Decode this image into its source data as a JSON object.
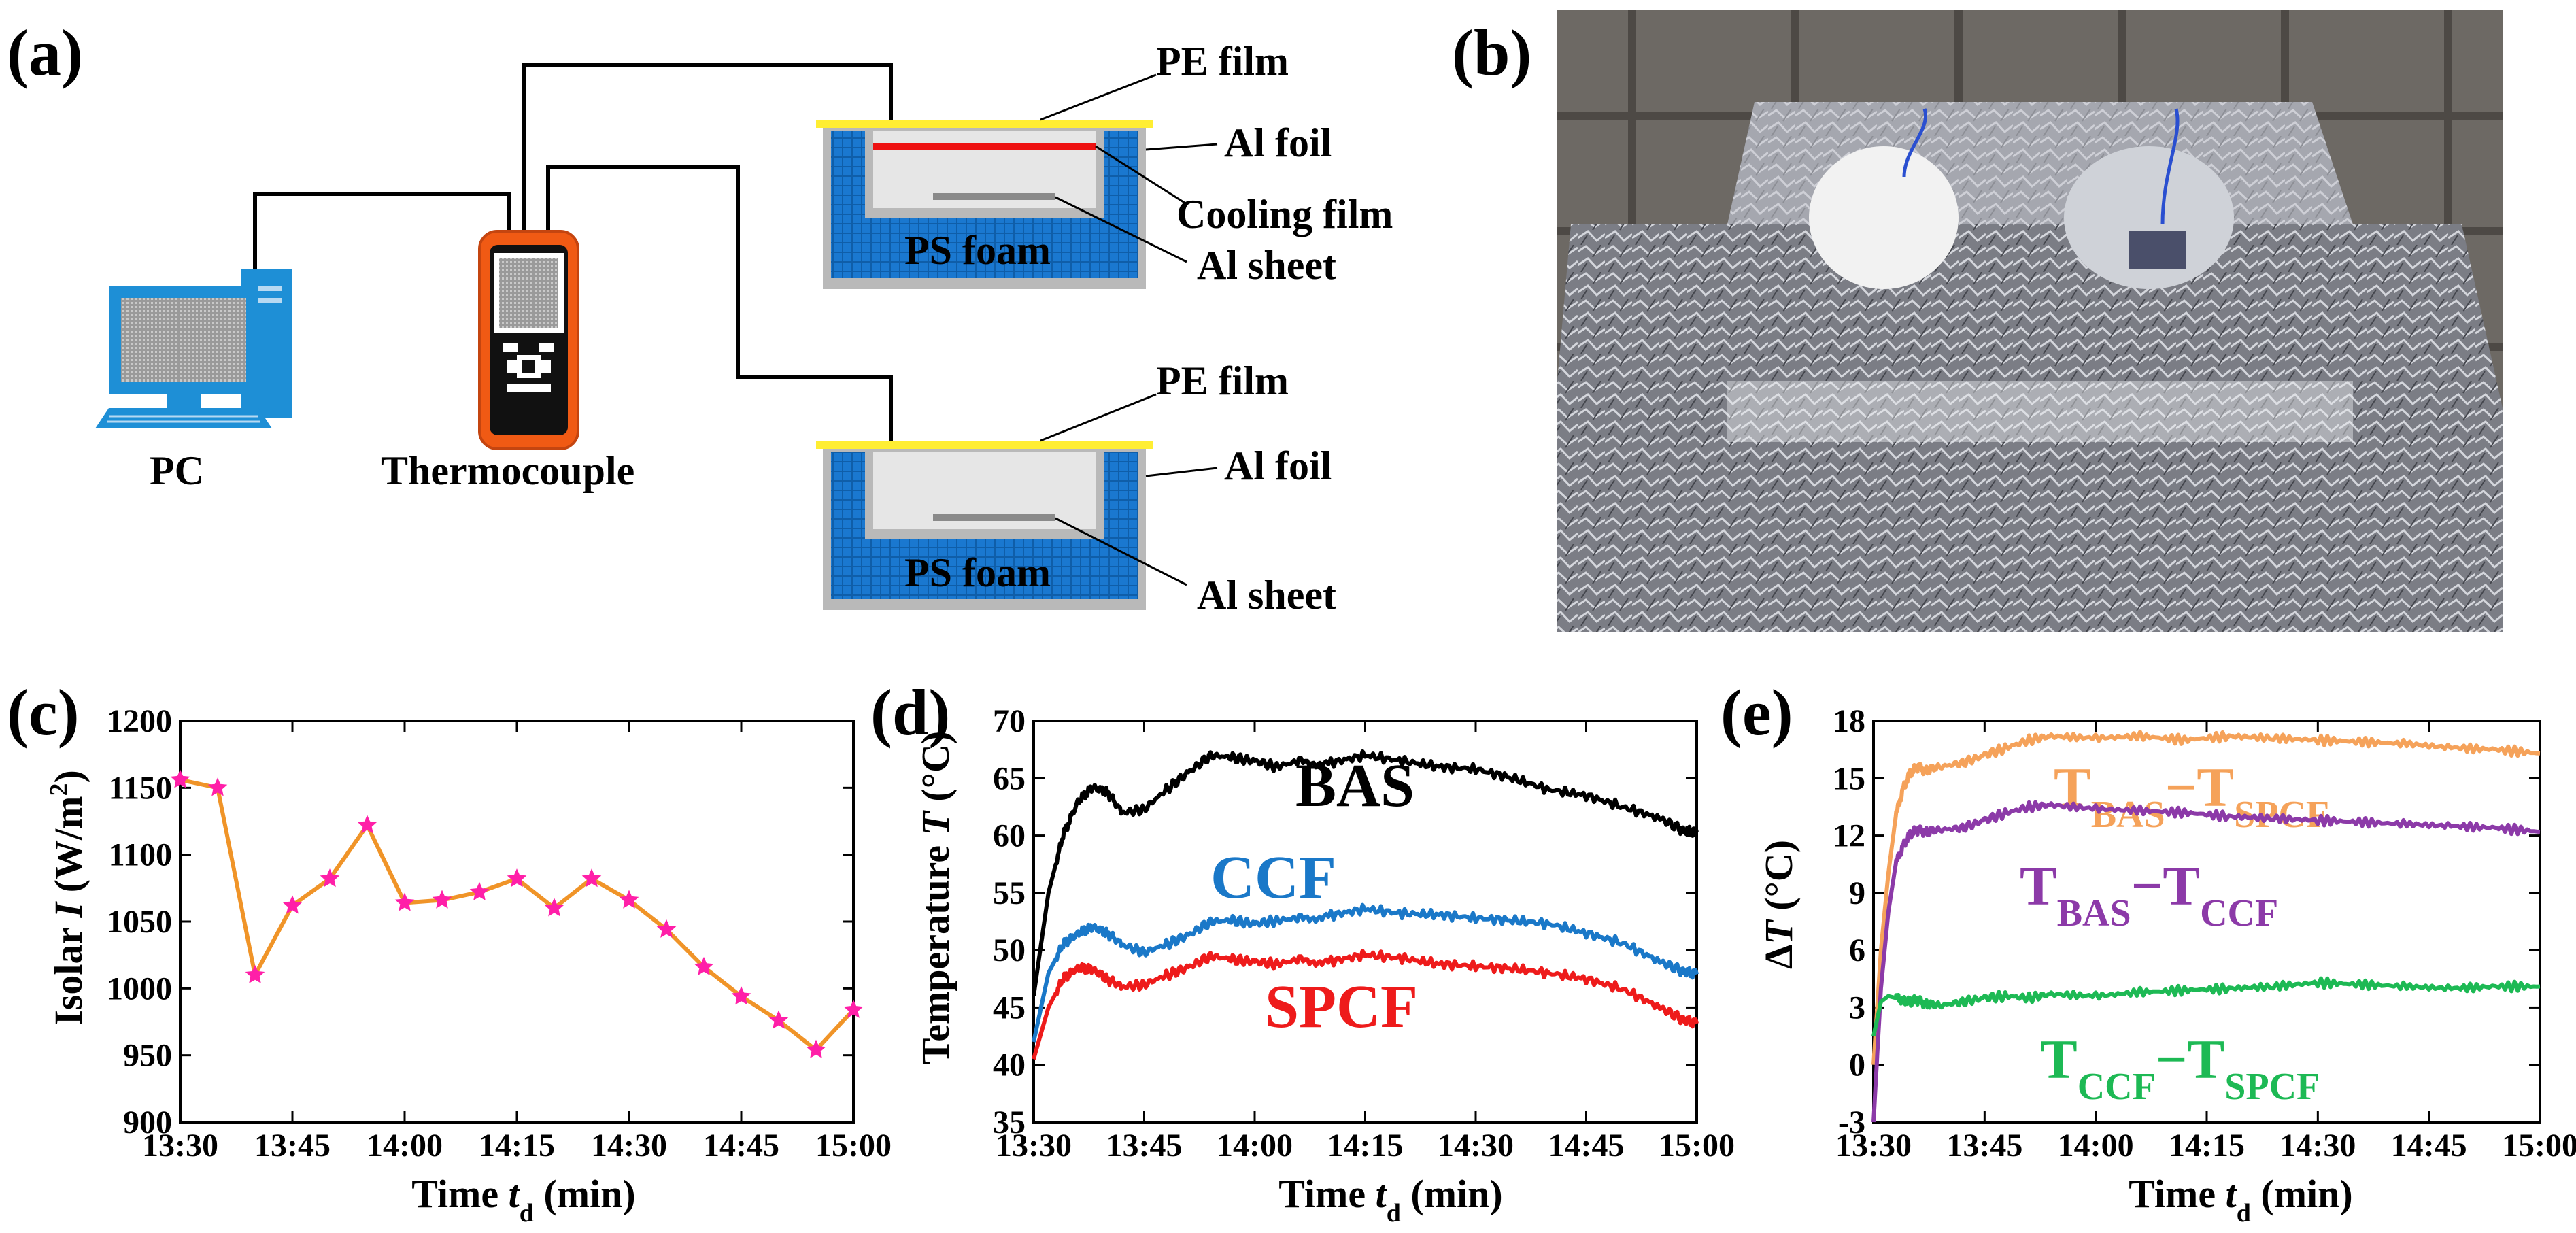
{
  "colors": {
    "pe_film": "#ffee33",
    "cooling_film": "#ee1111",
    "ps_foam": "#1a78d0",
    "al_foil": "#b9b9b9",
    "device_orange": "#f05a14",
    "pc_blue": "#1e8fd6",
    "series_black": "#000000",
    "series_blue": "#1a78c8",
    "series_red": "#ee1b1b",
    "series_orange": "#f5a25a",
    "series_purple": "#8c3aa8",
    "series_green": "#1db954",
    "line_c": "#f09428",
    "marker_c": "#ff1fa8"
  },
  "panels": {
    "a": {
      "label": "(a)",
      "pc_label": "PC",
      "thermocouple_label": "Thermocouple",
      "top_setup": {
        "pe_film": "PE film",
        "al_foil": "Al foil",
        "cooling_film": "Cooling film",
        "ps_foam": "PS foam",
        "al_sheet": "Al sheet"
      },
      "bottom_setup": {
        "pe_film": "PE film",
        "al_foil": "Al foil",
        "ps_foam": "PS foam",
        "al_sheet": "Al sheet"
      }
    },
    "b": {
      "label": "(b)"
    },
    "c": {
      "label": "(c)"
    },
    "d": {
      "label": "(d)"
    },
    "e": {
      "label": "(e)"
    }
  },
  "chart_data": [
    {
      "panel": "c",
      "type": "line",
      "title": "",
      "xlabel_main": "Time ",
      "xlabel_var": "t",
      "xlabel_sub": "d",
      "xlabel_unit": " (min)",
      "ylabel_main": "Isolar ",
      "ylabel_var": "I",
      "ylabel_unit": " (W/m",
      "ylabel_sup": "2",
      "ylabel_close": ")",
      "x_ticks": [
        "13:30",
        "13:45",
        "14:00",
        "14:15",
        "14:30",
        "14:45",
        "15:00"
      ],
      "y_ticks": [
        "900",
        "950",
        "1000",
        "1050",
        "1100",
        "1150",
        "1200"
      ],
      "xlim": [
        0,
        90
      ],
      "ylim": [
        900,
        1200
      ],
      "x": [
        0,
        5,
        10,
        15,
        20,
        25,
        30,
        35,
        40,
        45,
        50,
        55,
        60,
        65,
        70,
        75,
        80,
        85,
        90
      ],
      "values": [
        1156,
        1150,
        1010,
        1062,
        1082,
        1122,
        1064,
        1066,
        1072,
        1082,
        1060,
        1082,
        1066,
        1044,
        1016,
        994,
        976,
        954,
        984
      ]
    },
    {
      "panel": "d",
      "type": "line",
      "xlabel_main": "Time ",
      "xlabel_var": "t",
      "xlabel_sub": "d",
      "xlabel_unit": " (min)",
      "ylabel_main": "Temperature ",
      "ylabel_var": "T",
      "ylabel_unit": " (°C)",
      "x_ticks": [
        "13:30",
        "13:45",
        "14:00",
        "14:15",
        "14:30",
        "14:45",
        "15:00"
      ],
      "y_ticks": [
        "35",
        "40",
        "45",
        "50",
        "55",
        "60",
        "65",
        "70"
      ],
      "xlim": [
        0,
        90
      ],
      "ylim": [
        35,
        70
      ],
      "series": [
        {
          "name": "BAS",
          "color_key": "series_black",
          "x": [
            0,
            2,
            4,
            6,
            8,
            10,
            12,
            15,
            18,
            21,
            24,
            27,
            30,
            33,
            36,
            40,
            45,
            50,
            55,
            60,
            65,
            70,
            75,
            80,
            85,
            88,
            90
          ],
          "values": [
            46,
            55,
            60,
            63,
            64.2,
            63.8,
            62,
            62.3,
            64,
            65.5,
            67,
            66.8,
            66.5,
            66,
            66.5,
            66.3,
            67,
            66.5,
            66,
            65.8,
            65,
            64,
            63.5,
            62.5,
            61.5,
            60.5,
            60.3
          ]
        },
        {
          "name": "CCF",
          "color_key": "series_blue",
          "x": [
            0,
            2,
            4,
            6,
            8,
            10,
            12,
            15,
            18,
            21,
            24,
            27,
            30,
            33,
            36,
            40,
            45,
            50,
            55,
            60,
            65,
            70,
            75,
            80,
            85,
            88,
            90
          ],
          "values": [
            42,
            48,
            50.5,
            51.5,
            52,
            51.5,
            50.5,
            49.8,
            50.5,
            51.3,
            52.5,
            52.6,
            52.3,
            52.6,
            52.8,
            53,
            53.6,
            53.2,
            53.1,
            52.8,
            52.6,
            52.3,
            51.5,
            50.6,
            49,
            48.2,
            47.9
          ]
        },
        {
          "name": "SPCF",
          "color_key": "series_red",
          "x": [
            0,
            2,
            4,
            6,
            8,
            10,
            12,
            15,
            18,
            21,
            24,
            27,
            30,
            33,
            36,
            40,
            45,
            50,
            55,
            60,
            65,
            70,
            75,
            80,
            85,
            88,
            90
          ],
          "values": [
            40.5,
            45,
            47.5,
            48.5,
            48.3,
            47.5,
            46.8,
            47,
            47.8,
            48.5,
            49.5,
            49.2,
            49,
            48.8,
            49.2,
            49,
            49.6,
            49.3,
            48.8,
            48.6,
            48.4,
            48,
            47.5,
            46.6,
            45,
            44,
            43.6
          ]
        }
      ]
    },
    {
      "panel": "e",
      "type": "line",
      "xlabel_main": "Time ",
      "xlabel_var": "t",
      "xlabel_sub": "d",
      "xlabel_unit": " (min)",
      "ylabel_delta": "Δ",
      "ylabel_var": "T",
      "ylabel_unit": " (°C)",
      "x_ticks": [
        "13:30",
        "13:45",
        "14:00",
        "14:15",
        "14:30",
        "14:45",
        "15:00"
      ],
      "y_ticks": [
        "-3",
        "0",
        "3",
        "6",
        "9",
        "12",
        "15",
        "18"
      ],
      "xlim": [
        0,
        90
      ],
      "ylim": [
        -3,
        18
      ],
      "series": [
        {
          "name_base": "T",
          "sub1": "BAS",
          "minus": "−",
          "name_base2": "T",
          "sub2": "SPCF",
          "color_key": "series_orange",
          "x": [
            0,
            1,
            2,
            3,
            4,
            5,
            6,
            7,
            9,
            12,
            15,
            18,
            21,
            24,
            30,
            36,
            42,
            48,
            54,
            60,
            66,
            72,
            78,
            84,
            90
          ],
          "values": [
            0,
            6,
            10,
            13,
            14.5,
            15.3,
            15.6,
            15.4,
            15.6,
            15.8,
            16.2,
            16.6,
            17,
            17.2,
            17.1,
            17.2,
            17,
            17.2,
            17.1,
            17,
            16.9,
            16.8,
            16.6,
            16.5,
            16.3
          ]
        },
        {
          "name_base": "T",
          "sub1": "BAS",
          "minus": "−",
          "name_base2": "T",
          "sub2": "CCF",
          "color_key": "series_purple",
          "x": [
            0,
            1,
            2,
            3,
            4,
            5,
            6,
            7,
            9,
            12,
            15,
            18,
            21,
            24,
            30,
            36,
            42,
            48,
            54,
            60,
            66,
            72,
            78,
            84,
            90
          ],
          "values": [
            -3,
            4,
            8,
            10.5,
            11.5,
            12.1,
            12.3,
            12.2,
            12.3,
            12.4,
            12.8,
            13.2,
            13.5,
            13.6,
            13.4,
            13.3,
            13.2,
            13,
            12.9,
            12.8,
            12.7,
            12.6,
            12.5,
            12.4,
            12.2
          ]
        },
        {
          "name_base": "T",
          "sub1": "CCF",
          "minus": "−",
          "name_base2": "T",
          "sub2": "SPCF",
          "color_key": "series_green",
          "x": [
            0,
            1,
            2,
            3,
            4,
            5,
            6,
            7,
            9,
            12,
            15,
            18,
            21,
            24,
            30,
            36,
            42,
            48,
            54,
            60,
            66,
            72,
            78,
            84,
            90
          ],
          "values": [
            1.5,
            3.3,
            3.6,
            3.5,
            3.4,
            3.3,
            3.4,
            3.2,
            3.1,
            3.3,
            3.5,
            3.6,
            3.5,
            3.7,
            3.6,
            3.8,
            3.9,
            4,
            4.1,
            4.3,
            4.2,
            4.1,
            4,
            4.1,
            4.1
          ]
        }
      ]
    }
  ]
}
